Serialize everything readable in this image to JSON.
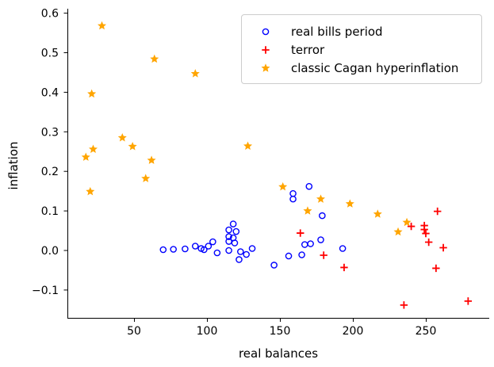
{
  "figure": {
    "background": "#ffffff"
  },
  "chart_data": {
    "type": "scatter",
    "title": "",
    "xlabel": "real balances",
    "ylabel": "inflation",
    "xlim": [
      4,
      293
    ],
    "ylim": [
      -0.17,
      0.62
    ],
    "grid": false,
    "axis_color": "#000000",
    "text_color": "#000000",
    "legend": {
      "position": "upper-center-right-inside",
      "border_color": "#cccccc",
      "background": "#ffffff"
    },
    "x_ticks": [
      50,
      100,
      150,
      200,
      250
    ],
    "x_tick_labels": [
      "50",
      "100",
      "150",
      "200",
      "250"
    ],
    "y_ticks": [
      -0.1,
      0.0,
      0.1,
      0.2,
      0.3,
      0.4,
      0.5,
      0.6
    ],
    "y_tick_labels": [
      "−0.1",
      "0.0",
      "0.1",
      "0.2",
      "0.3",
      "0.4",
      "0.5",
      "0.6"
    ],
    "series": [
      {
        "name": "real bills period",
        "marker": "open-circle",
        "color": "#0000ff",
        "points": [
          [
            70,
            0.002
          ],
          [
            77,
            0.003
          ],
          [
            85,
            0.004
          ],
          [
            92,
            0.011
          ],
          [
            96,
            0.005
          ],
          [
            98,
            0.002
          ],
          [
            101,
            0.011
          ],
          [
            104,
            0.022
          ],
          [
            107,
            -0.006
          ],
          [
            115,
            0.052
          ],
          [
            115,
            0.035
          ],
          [
            115,
            0.023
          ],
          [
            115,
            0.0
          ],
          [
            118,
            0.067
          ],
          [
            118,
            0.032
          ],
          [
            119,
            0.019
          ],
          [
            120,
            0.048
          ],
          [
            122,
            -0.023
          ],
          [
            123,
            -0.003
          ],
          [
            127,
            -0.01
          ],
          [
            131,
            0.005
          ],
          [
            146,
            -0.037
          ],
          [
            156,
            -0.014
          ],
          [
            159,
            0.144
          ],
          [
            159,
            0.13
          ],
          [
            165,
            -0.011
          ],
          [
            167,
            0.015
          ],
          [
            170,
            0.162
          ],
          [
            171,
            0.017
          ],
          [
            178,
            0.027
          ],
          [
            179,
            0.088
          ],
          [
            193,
            0.005
          ]
        ]
      },
      {
        "name": "terror",
        "marker": "plus",
        "color": "#ff0000",
        "points": [
          [
            164,
            0.044
          ],
          [
            180,
            -0.012
          ],
          [
            194,
            -0.043
          ],
          [
            235,
            -0.138
          ],
          [
            240,
            0.061
          ],
          [
            249,
            0.063
          ],
          [
            249,
            0.053
          ],
          [
            250,
            0.043
          ],
          [
            252,
            0.021
          ],
          [
            257,
            -0.045
          ],
          [
            258,
            0.099
          ],
          [
            262,
            0.007
          ],
          [
            279,
            -0.128
          ]
        ]
      },
      {
        "name": "classic Cagan hyperinflation",
        "marker": "star",
        "color": "#ffa500",
        "points": [
          [
            17,
            0.236
          ],
          [
            20,
            0.149
          ],
          [
            21,
            0.396
          ],
          [
            22,
            0.256
          ],
          [
            28,
            0.568
          ],
          [
            42,
            0.285
          ],
          [
            49,
            0.263
          ],
          [
            58,
            0.182
          ],
          [
            62,
            0.228
          ],
          [
            64,
            0.484
          ],
          [
            92,
            0.447
          ],
          [
            128,
            0.264
          ],
          [
            152,
            0.161
          ],
          [
            169,
            0.1
          ],
          [
            178,
            0.13
          ],
          [
            198,
            0.118
          ],
          [
            217,
            0.092
          ],
          [
            231,
            0.047
          ],
          [
            237,
            0.071
          ]
        ]
      }
    ]
  }
}
